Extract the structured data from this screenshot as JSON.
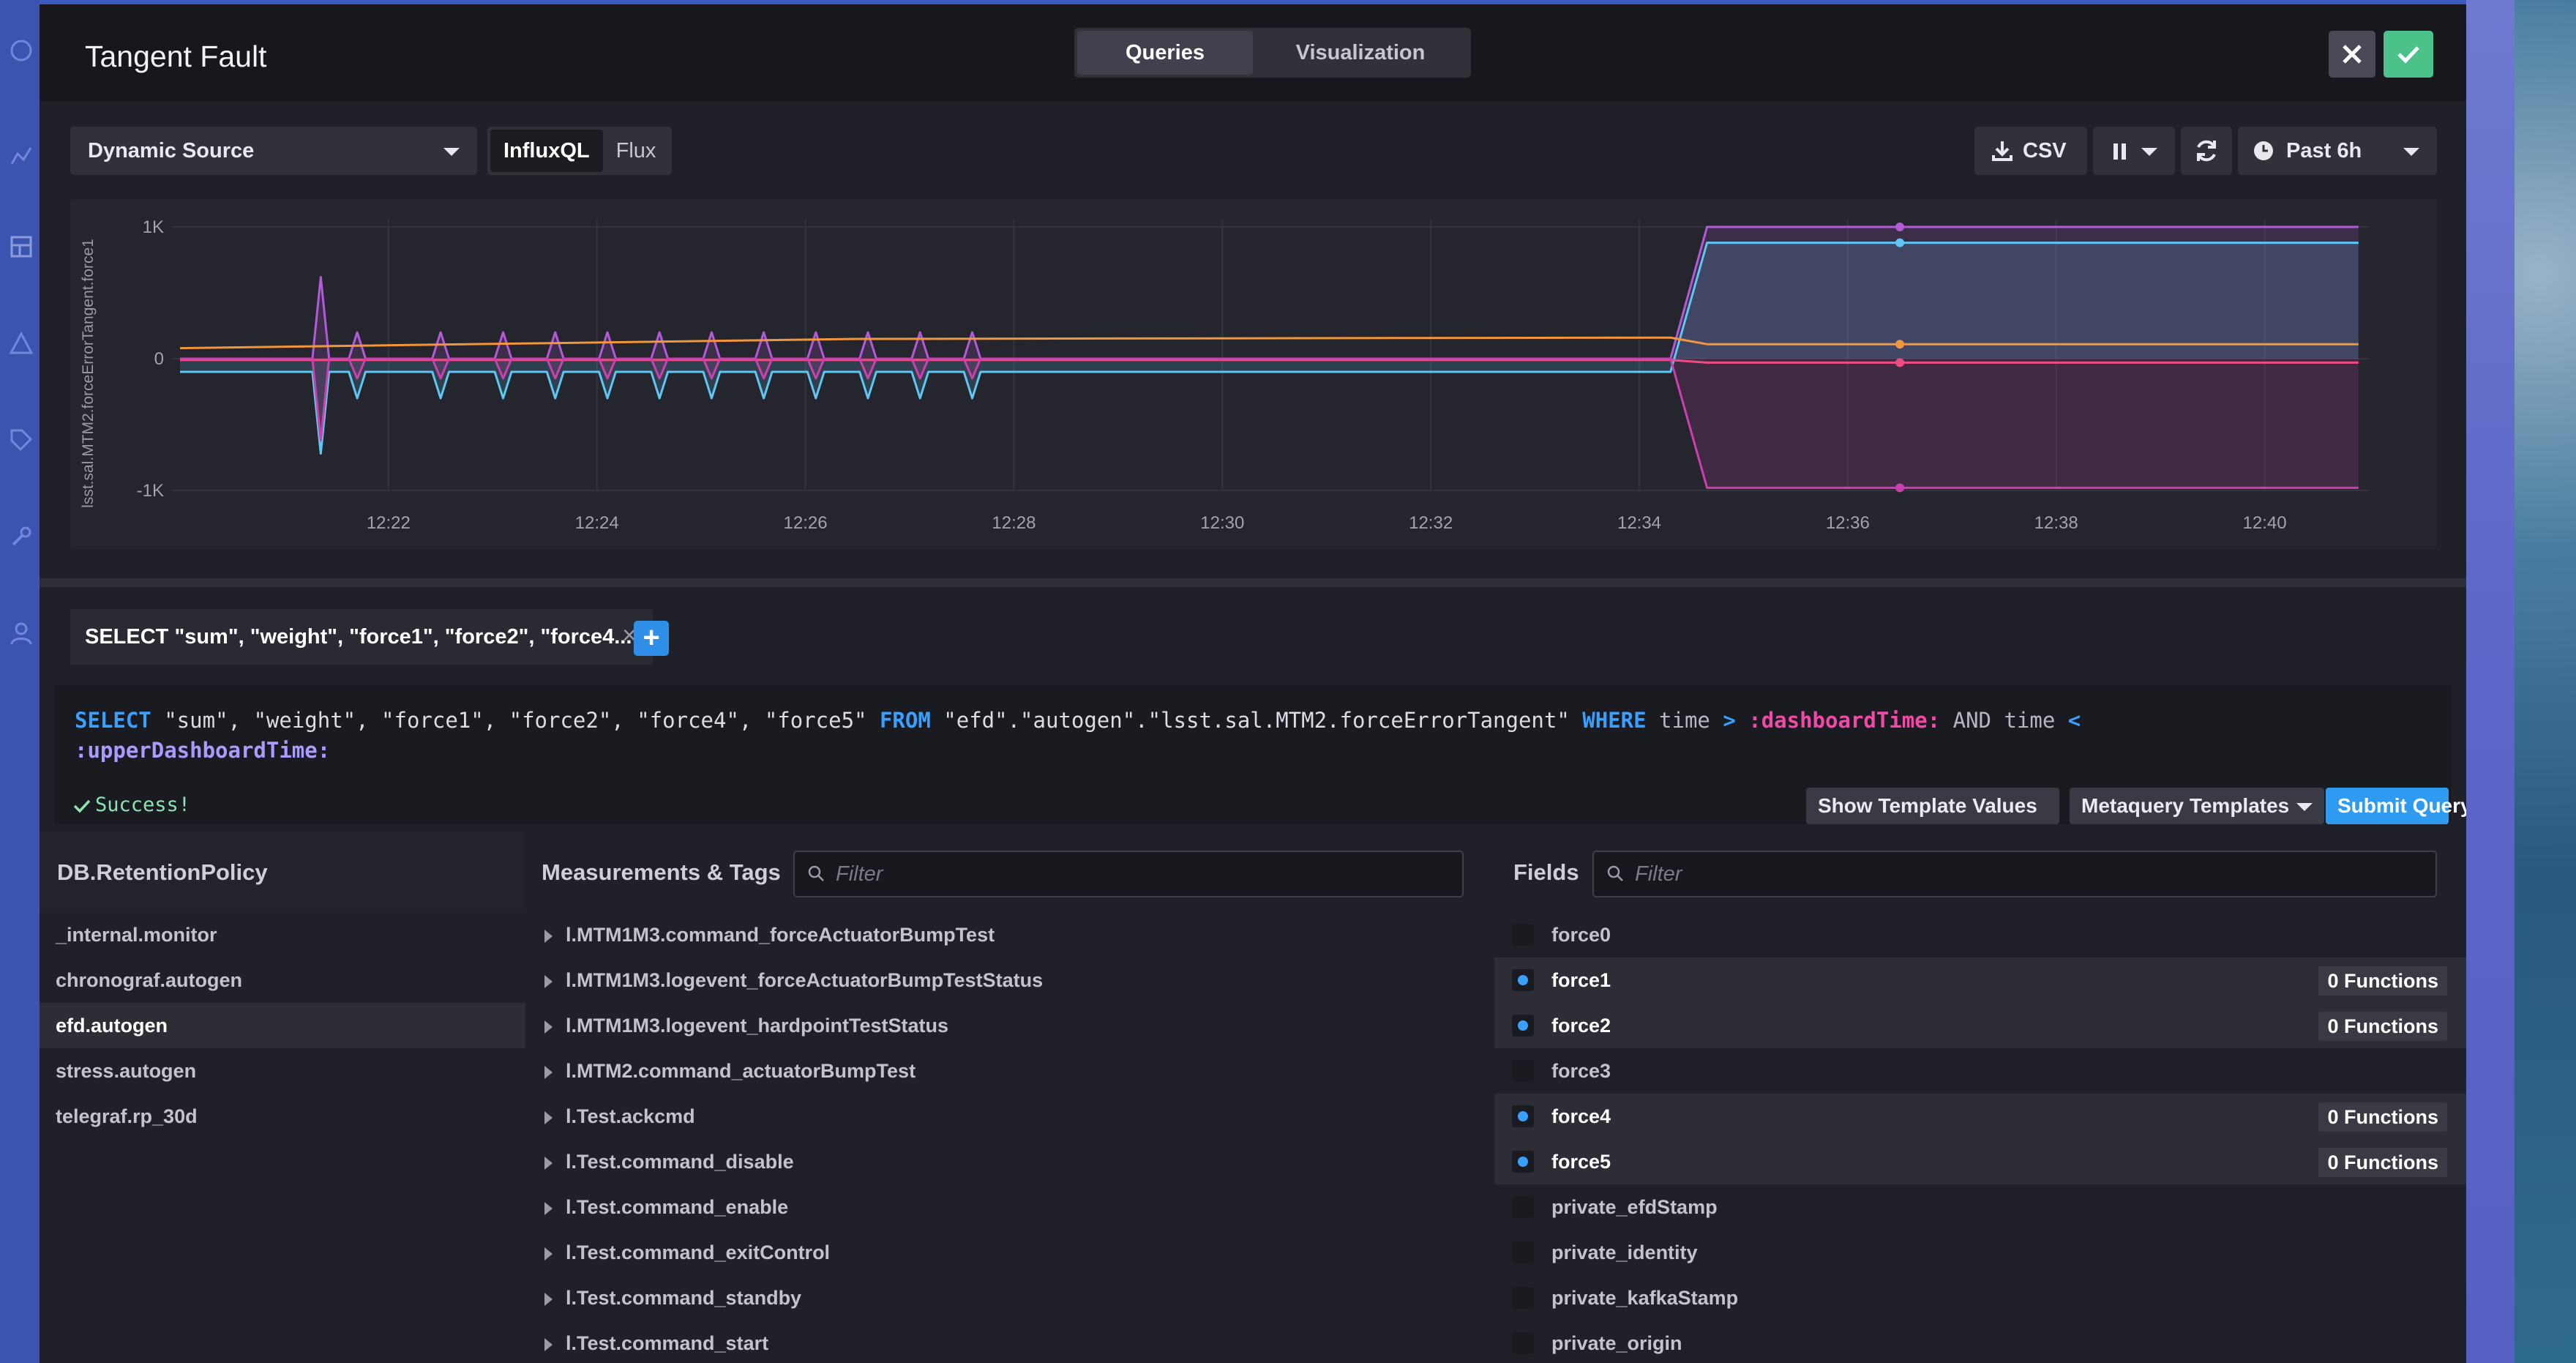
{
  "window": {
    "title": "Tangent Fault"
  },
  "header": {
    "tabs": [
      {
        "label": "Queries",
        "active": true
      },
      {
        "label": "Visualization",
        "active": false
      }
    ],
    "close_icon": "close-icon",
    "confirm_icon": "check-icon"
  },
  "toolbar": {
    "source": "Dynamic Source",
    "languages": [
      {
        "label": "InfluxQL",
        "active": true
      },
      {
        "label": "Flux",
        "active": false
      }
    ],
    "csv_label": "CSV",
    "time_range": "Past 6h"
  },
  "chart_data": {
    "type": "line",
    "ylabel": "lsst.sal.MTM2.forceErrorTangent.force1",
    "y_ticks": [
      "1K",
      "0",
      "-1K"
    ],
    "ylim": [
      -1000,
      1000
    ],
    "x_ticks": [
      "12:22",
      "12:24",
      "12:26",
      "12:28",
      "12:30",
      "12:32",
      "12:34",
      "12:36",
      "12:38",
      "12:40"
    ],
    "xlim_minutes": [
      20.0,
      41.0
    ],
    "colors": {
      "cyan": "#5fc6f2",
      "purple": "#b25ad8",
      "orange": "#f2963c",
      "pink": "#ee4d84",
      "magenta": "#cc3fae"
    },
    "series": [
      {
        "color": "#b25ad8",
        "values_after_12_34": 1000,
        "values_before": 0
      },
      {
        "color": "#5fc6f2",
        "values_after_12_34": 880,
        "values_before": -100
      },
      {
        "color": "#f2963c",
        "values_after_12_34": 110,
        "values_before": 80
      },
      {
        "color": "#ee4d84",
        "values_after_12_34": -30,
        "values_before": -10
      },
      {
        "color": "#cc3fae",
        "values_after_12_34": -980,
        "values_before": 0
      }
    ],
    "grid": true,
    "legend": "none"
  },
  "queries": {
    "active_tab_label": "SELECT \"sum\", \"weight\", \"force1\", \"force2\", \"force4...",
    "code": {
      "select": "SELECT",
      "fields": " \"sum\", \"weight\", \"force1\", \"force2\", \"force4\", \"force5\" ",
      "from": "FROM",
      "source": " \"efd\".\"autogen\".\"lsst.sal.MTM2.forceErrorTangent\" ",
      "where": "WHERE",
      "time1": " time ",
      "gt": ">",
      "dashboard_time": " :dashboardTime:",
      "and": " AND time ",
      "lt": "<",
      "upper_time": ":upperDashboardTime:"
    },
    "status": "Success!",
    "buttons": {
      "template_values": "Show Template Values",
      "metaquery": "Metaquery Templates",
      "submit": "Submit Query"
    }
  },
  "explorer": {
    "db_title": "DB.RetentionPolicy",
    "databases": [
      {
        "label": "_internal.monitor",
        "selected": false
      },
      {
        "label": "chronograf.autogen",
        "selected": false
      },
      {
        "label": "efd.autogen",
        "selected": true
      },
      {
        "label": "stress.autogen",
        "selected": false
      },
      {
        "label": "telegraf.rp_30d",
        "selected": false
      }
    ],
    "measurements_title": "Measurements & Tags",
    "measurements_filter_placeholder": "Filter",
    "measurements": [
      "l.MTM1M3.command_forceActuatorBumpTest",
      "l.MTM1M3.logevent_forceActuatorBumpTestStatus",
      "l.MTM1M3.logevent_hardpointTestStatus",
      "l.MTM2.command_actuatorBumpTest",
      "l.Test.ackcmd",
      "l.Test.command_disable",
      "l.Test.command_enable",
      "l.Test.command_exitControl",
      "l.Test.command_standby",
      "l.Test.command_start"
    ],
    "fields_title": "Fields",
    "fields_filter_placeholder": "Filter",
    "fields": [
      {
        "label": "force0",
        "checked": false,
        "functions": ""
      },
      {
        "label": "force1",
        "checked": true,
        "functions": "0 Functions"
      },
      {
        "label": "force2",
        "checked": true,
        "functions": "0 Functions"
      },
      {
        "label": "force3",
        "checked": false,
        "functions": ""
      },
      {
        "label": "force4",
        "checked": true,
        "functions": "0 Functions"
      },
      {
        "label": "force5",
        "checked": true,
        "functions": "0 Functions"
      },
      {
        "label": "private_efdStamp",
        "checked": false,
        "functions": ""
      },
      {
        "label": "private_identity",
        "checked": false,
        "functions": ""
      },
      {
        "label": "private_kafkaStamp",
        "checked": false,
        "functions": ""
      },
      {
        "label": "private_origin",
        "checked": false,
        "functions": ""
      }
    ]
  }
}
